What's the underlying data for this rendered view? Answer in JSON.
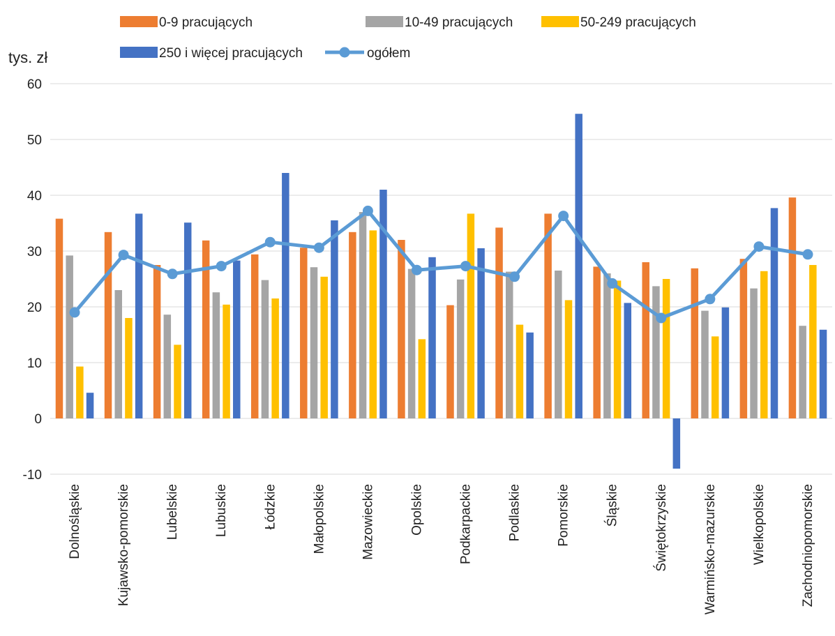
{
  "chart_data": {
    "type": "bar",
    "unit_label": "tys. zł",
    "title": "",
    "xlabel": "",
    "ylabel": "",
    "ylim": [
      -10,
      60
    ],
    "yticks": [
      -10,
      0,
      10,
      20,
      30,
      40,
      50,
      60
    ],
    "grid": true,
    "legend_position": "top",
    "categories": [
      "Dolnośląskie",
      "Kujawsko-pomorskie",
      "Lubelskie",
      "Lubuskie",
      "Łódzkie",
      "Małopolskie",
      "Mazowieckie",
      "Opolskie",
      "Podkarpackie",
      "Podlaskie",
      "Pomorskie",
      "Śląskie",
      "Świętokrzyskie",
      "Warmińsko-mazurskie",
      "Wielkopolskie",
      "Zachodniopomorskie"
    ],
    "series": [
      {
        "name": "0-9 pracujących",
        "type": "bar",
        "color": "#ED7D31",
        "values": [
          35.8,
          33.4,
          27.5,
          31.9,
          29.4,
          30.6,
          33.4,
          32.0,
          20.3,
          34.2,
          36.7,
          27.2,
          28.0,
          26.9,
          28.6,
          39.6
        ]
      },
      {
        "name": "10-49 pracujących",
        "type": "bar",
        "color": "#A5A5A5",
        "values": [
          29.2,
          23.0,
          18.6,
          22.6,
          24.8,
          27.1,
          37.0,
          26.8,
          24.9,
          26.3,
          26.5,
          26.0,
          23.7,
          19.3,
          23.3,
          16.6
        ]
      },
      {
        "name": "50-249 pracujących",
        "type": "bar",
        "color": "#FFC000",
        "values": [
          9.3,
          18.0,
          13.2,
          20.4,
          21.5,
          25.4,
          33.7,
          14.2,
          36.7,
          16.8,
          21.2,
          24.7,
          25.0,
          14.7,
          26.4,
          27.5
        ]
      },
      {
        "name": "250 i więcej pracujących",
        "type": "bar",
        "color": "#4472C4",
        "values": [
          4.6,
          36.7,
          35.1,
          28.3,
          44.0,
          35.5,
          41.0,
          28.9,
          30.5,
          15.4,
          54.6,
          20.7,
          -9.0,
          19.9,
          37.7,
          15.9
        ]
      },
      {
        "name": "ogółem",
        "type": "line",
        "color": "#5B9BD5",
        "values": [
          19.0,
          29.3,
          25.9,
          27.3,
          31.6,
          30.6,
          37.2,
          26.6,
          27.3,
          25.4,
          36.3,
          24.2,
          18.0,
          21.4,
          30.8,
          29.4
        ]
      }
    ]
  }
}
